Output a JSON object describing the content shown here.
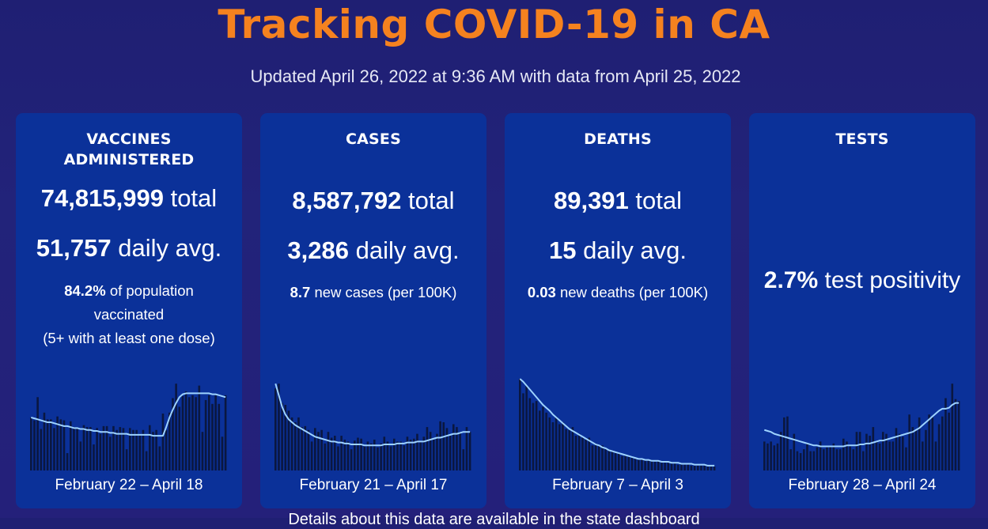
{
  "header": {
    "title": "Tracking COVID-19 in CA",
    "updated": "Updated April 26, 2022 at 9:36 AM with data from April 25, 2022"
  },
  "cards": {
    "vaccines": {
      "title": "VACCINES ADMINISTERED",
      "total_value": "74,815,999",
      "total_unit": "total",
      "daily_value": "51,757",
      "daily_unit": "daily avg.",
      "pct_value": "84.2%",
      "pct_text": "of population",
      "pct_text2": "vaccinated",
      "pct_text3": "(5+ with at least one dose)",
      "range": "February 22 – April 18"
    },
    "cases": {
      "title": "CASES",
      "total_value": "8,587,792",
      "total_unit": "total",
      "daily_value": "3,286",
      "daily_unit": "daily avg.",
      "rate_value": "8.7",
      "rate_text": "new cases (per 100K)",
      "range": "February 21 – April 17"
    },
    "deaths": {
      "title": "DEATHS",
      "total_value": "89,391",
      "total_unit": "total",
      "daily_value": "15",
      "daily_unit": "daily avg.",
      "rate_value": "0.03",
      "rate_text": "new deaths (per 100K)",
      "range": "February 7 – April 3"
    },
    "tests": {
      "title": "TESTS",
      "positivity_value": "2.7%",
      "positivity_text": "test positivity",
      "range": "February 28 – April 24"
    }
  },
  "footer": {
    "text": "Details about this data are available in the state dashboard"
  },
  "colors": {
    "title": "#f5821f",
    "card": "#0b3199",
    "bars": "#0a1740",
    "line": "#9ed3ff"
  },
  "chart_data": [
    {
      "type": "bar",
      "name": "vaccines",
      "values": [
        0.55,
        0.52,
        0.76,
        0.43,
        0.6,
        0.53,
        0.53,
        0.44,
        0.56,
        0.53,
        0.52,
        0.18,
        0.51,
        0.45,
        0.44,
        0.3,
        0.47,
        0.45,
        0.45,
        0.27,
        0.44,
        0.38,
        0.46,
        0.46,
        0.35,
        0.46,
        0.42,
        0.45,
        0.44,
        0.22,
        0.44,
        0.42,
        0.42,
        0.38,
        0.42,
        0.2,
        0.47,
        0.4,
        0.42,
        0.25,
        0.59,
        0.42,
        0.6,
        0.75,
        0.9,
        0.66,
        0.77,
        0.82,
        0.76,
        0.78,
        0.76,
        0.88,
        0.4,
        0.73,
        0.78,
        0.69,
        0.78,
        0.69,
        0.35,
        0.78
      ],
      "trend": [
        0.55,
        0.54,
        0.53,
        0.52,
        0.51,
        0.5,
        0.5,
        0.49,
        0.48,
        0.47,
        0.46,
        0.46,
        0.45,
        0.44,
        0.44,
        0.43,
        0.43,
        0.42,
        0.42,
        0.41,
        0.41,
        0.4,
        0.4,
        0.4,
        0.39,
        0.39,
        0.38,
        0.38,
        0.38,
        0.38,
        0.37,
        0.37,
        0.37,
        0.37,
        0.37,
        0.37,
        0.37,
        0.36,
        0.36,
        0.36,
        0.36,
        0.45,
        0.55,
        0.63,
        0.7,
        0.76,
        0.79,
        0.8,
        0.8,
        0.8,
        0.8,
        0.8,
        0.8,
        0.8,
        0.8,
        0.79,
        0.79,
        0.78,
        0.77,
        0.76
      ]
    },
    {
      "type": "bar",
      "name": "cases",
      "values": [
        0.85,
        0.9,
        0.7,
        0.68,
        0.62,
        0.55,
        0.5,
        0.55,
        0.45,
        0.46,
        0.42,
        0.3,
        0.44,
        0.4,
        0.42,
        0.28,
        0.4,
        0.34,
        0.36,
        0.25,
        0.36,
        0.32,
        0.3,
        0.22,
        0.31,
        0.34,
        0.33,
        0.25,
        0.3,
        0.28,
        0.32,
        0.24,
        0.28,
        0.35,
        0.3,
        0.25,
        0.33,
        0.3,
        0.3,
        0.26,
        0.35,
        0.32,
        0.33,
        0.38,
        0.3,
        0.35,
        0.45,
        0.4,
        0.32,
        0.38,
        0.51,
        0.5,
        0.44,
        0.36,
        0.48,
        0.45,
        0.4,
        0.22,
        0.45,
        0.4
      ],
      "trend": [
        0.9,
        0.78,
        0.66,
        0.58,
        0.53,
        0.5,
        0.47,
        0.45,
        0.43,
        0.41,
        0.39,
        0.37,
        0.35,
        0.34,
        0.33,
        0.32,
        0.31,
        0.3,
        0.3,
        0.29,
        0.29,
        0.28,
        0.28,
        0.27,
        0.27,
        0.27,
        0.27,
        0.26,
        0.26,
        0.26,
        0.26,
        0.26,
        0.26,
        0.27,
        0.27,
        0.27,
        0.27,
        0.28,
        0.28,
        0.28,
        0.29,
        0.29,
        0.29,
        0.3,
        0.3,
        0.3,
        0.31,
        0.32,
        0.33,
        0.34,
        0.34,
        0.35,
        0.36,
        0.37,
        0.38,
        0.38,
        0.39,
        0.4,
        0.4,
        0.4
      ]
    },
    {
      "type": "bar",
      "name": "deaths",
      "values": [
        0.95,
        0.8,
        0.88,
        0.75,
        0.7,
        0.72,
        0.62,
        0.66,
        0.6,
        0.55,
        0.5,
        0.56,
        0.48,
        0.5,
        0.43,
        0.42,
        0.45,
        0.36,
        0.38,
        0.34,
        0.32,
        0.34,
        0.26,
        0.28,
        0.25,
        0.26,
        0.22,
        0.22,
        0.2,
        0.18,
        0.18,
        0.15,
        0.16,
        0.14,
        0.13,
        0.12,
        0.11,
        0.12,
        0.1,
        0.1,
        0.1,
        0.09,
        0.1,
        0.08,
        0.08,
        0.08,
        0.07,
        0.08,
        0.06,
        0.06,
        0.06,
        0.06,
        0.05,
        0.05,
        0.05,
        0.05,
        0.05,
        0.04,
        0.04,
        0.04
      ],
      "trend": [
        0.95,
        0.92,
        0.88,
        0.84,
        0.8,
        0.76,
        0.72,
        0.68,
        0.65,
        0.62,
        0.58,
        0.55,
        0.52,
        0.49,
        0.46,
        0.43,
        0.41,
        0.39,
        0.37,
        0.35,
        0.33,
        0.31,
        0.29,
        0.27,
        0.26,
        0.24,
        0.23,
        0.21,
        0.2,
        0.19,
        0.18,
        0.17,
        0.16,
        0.15,
        0.14,
        0.13,
        0.12,
        0.12,
        0.11,
        0.11,
        0.1,
        0.1,
        0.1,
        0.09,
        0.09,
        0.09,
        0.08,
        0.08,
        0.08,
        0.07,
        0.07,
        0.07,
        0.07,
        0.06,
        0.06,
        0.06,
        0.06,
        0.05,
        0.05,
        0.05
      ]
    },
    {
      "type": "bar",
      "name": "tests",
      "values": [
        0.3,
        0.28,
        0.3,
        0.26,
        0.28,
        0.4,
        0.55,
        0.56,
        0.22,
        0.38,
        0.2,
        0.18,
        0.22,
        0.28,
        0.2,
        0.2,
        0.24,
        0.3,
        0.22,
        0.24,
        0.25,
        0.28,
        0.22,
        0.22,
        0.33,
        0.3,
        0.25,
        0.22,
        0.4,
        0.4,
        0.2,
        0.38,
        0.36,
        0.45,
        0.3,
        0.28,
        0.4,
        0.38,
        0.3,
        0.3,
        0.44,
        0.38,
        0.35,
        0.24,
        0.58,
        0.45,
        0.42,
        0.55,
        0.3,
        0.42,
        0.58,
        0.55,
        0.3,
        0.48,
        0.56,
        0.75,
        0.6,
        0.9,
        0.74,
        0.72
      ],
      "trend": [
        0.42,
        0.41,
        0.4,
        0.38,
        0.37,
        0.36,
        0.35,
        0.34,
        0.33,
        0.32,
        0.31,
        0.3,
        0.29,
        0.28,
        0.27,
        0.26,
        0.26,
        0.25,
        0.25,
        0.25,
        0.25,
        0.25,
        0.25,
        0.25,
        0.25,
        0.26,
        0.26,
        0.26,
        0.26,
        0.27,
        0.27,
        0.28,
        0.28,
        0.29,
        0.3,
        0.31,
        0.31,
        0.32,
        0.33,
        0.34,
        0.35,
        0.36,
        0.37,
        0.38,
        0.39,
        0.4,
        0.42,
        0.44,
        0.47,
        0.5,
        0.53,
        0.56,
        0.59,
        0.62,
        0.64,
        0.64,
        0.65,
        0.68,
        0.7,
        0.7
      ]
    }
  ]
}
